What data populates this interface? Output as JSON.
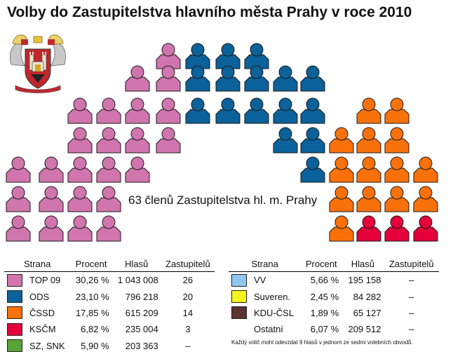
{
  "title": "Volby do Zastupitelstva hlavního města Prahy v roce 2010",
  "center_label": "63 členů Zastupitelstva hl. m. Prahy",
  "footnote": "Každý volič mohl odevzdat 9 hlasů v jednom ze sedmi volebních obvodů.",
  "legend_headers": [
    "Strana",
    "Procent",
    "Hlasů",
    "Zastupitelů"
  ],
  "colors": {
    "TOP 09": "#d175ae",
    "ODS": "#0b619a",
    "ČSSD": "#f9710a",
    "KSČM": "#e3003b",
    "SZ, SNK": "#5aa334",
    "VV": "#90c7ee",
    "Suveren.": "#f6f31d",
    "KDU-ČSL": "#5b3330"
  },
  "chart_data": {
    "type": "table",
    "title": "Volby do Zastupitelstva hlavního města Prahy v roce 2010",
    "total_seats_label": "63 členů Zastupitelstva hl. m. Prahy",
    "parties": [
      {
        "name": "TOP 09",
        "percent": "30,26 %",
        "votes": "1 043 008",
        "seats": "26",
        "seat_count": 26,
        "color": "#d175ae"
      },
      {
        "name": "ODS",
        "percent": "23,10 %",
        "votes": "796 218",
        "seats": "20",
        "seat_count": 20,
        "color": "#0b619a"
      },
      {
        "name": "ČSSD",
        "percent": "17,85 %",
        "votes": "615 209",
        "seats": "14",
        "seat_count": 14,
        "color": "#f9710a"
      },
      {
        "name": "KSČM",
        "percent": "6,82 %",
        "votes": "235 004",
        "seats": "3",
        "seat_count": 3,
        "color": "#e3003b"
      },
      {
        "name": "SZ, SNK",
        "percent": "5,90 %",
        "votes": "203 363",
        "seats": "–",
        "seat_count": 0,
        "color": "#5aa334"
      },
      {
        "name": "VV",
        "percent": "5,66 %",
        "votes": "195 158",
        "seats": "–",
        "seat_count": 0,
        "color": "#90c7ee"
      },
      {
        "name": "Suveren.",
        "percent": "2,45 %",
        "votes": "84 282",
        "seats": "–",
        "seat_count": 0,
        "color": "#f6f31d"
      },
      {
        "name": "KDU-ČSL",
        "percent": "1,89 %",
        "votes": "65 127",
        "seats": "–",
        "seat_count": 0,
        "color": "#5b3330"
      },
      {
        "name": "Ostatní",
        "percent": "6,07 %",
        "votes": "209 512",
        "seats": "–",
        "seat_count": 0,
        "color": ""
      }
    ]
  }
}
